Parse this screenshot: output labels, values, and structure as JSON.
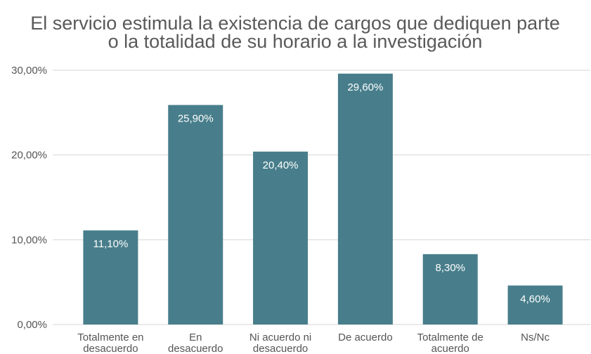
{
  "chart_data": {
    "type": "bar",
    "title": "El servicio estimula la existencia de cargos que dediquen parte\no la totalidad de su horario a la investigación",
    "categories": [
      "Totalmente en\ndesacuerdo",
      "En\ndesacuerdo",
      "Ni acuerdo ni\ndesacuerdo",
      "De acuerdo",
      "Totalmente de\nacuerdo",
      "Ns/Nc"
    ],
    "values": [
      11.1,
      25.9,
      20.4,
      29.6,
      8.3,
      4.6
    ],
    "value_labels": [
      "11,10%",
      "25,90%",
      "20,40%",
      "29,60%",
      "8,30%",
      "4,60%"
    ],
    "color": "#487e8b",
    "ylim": [
      0,
      30
    ],
    "yticks": [
      {
        "value": 0,
        "label": "0,00%"
      },
      {
        "value": 10,
        "label": "10,00%"
      },
      {
        "value": 20,
        "label": "20,00%"
      },
      {
        "value": 30,
        "label": "30,00%"
      }
    ],
    "grid": true
  }
}
